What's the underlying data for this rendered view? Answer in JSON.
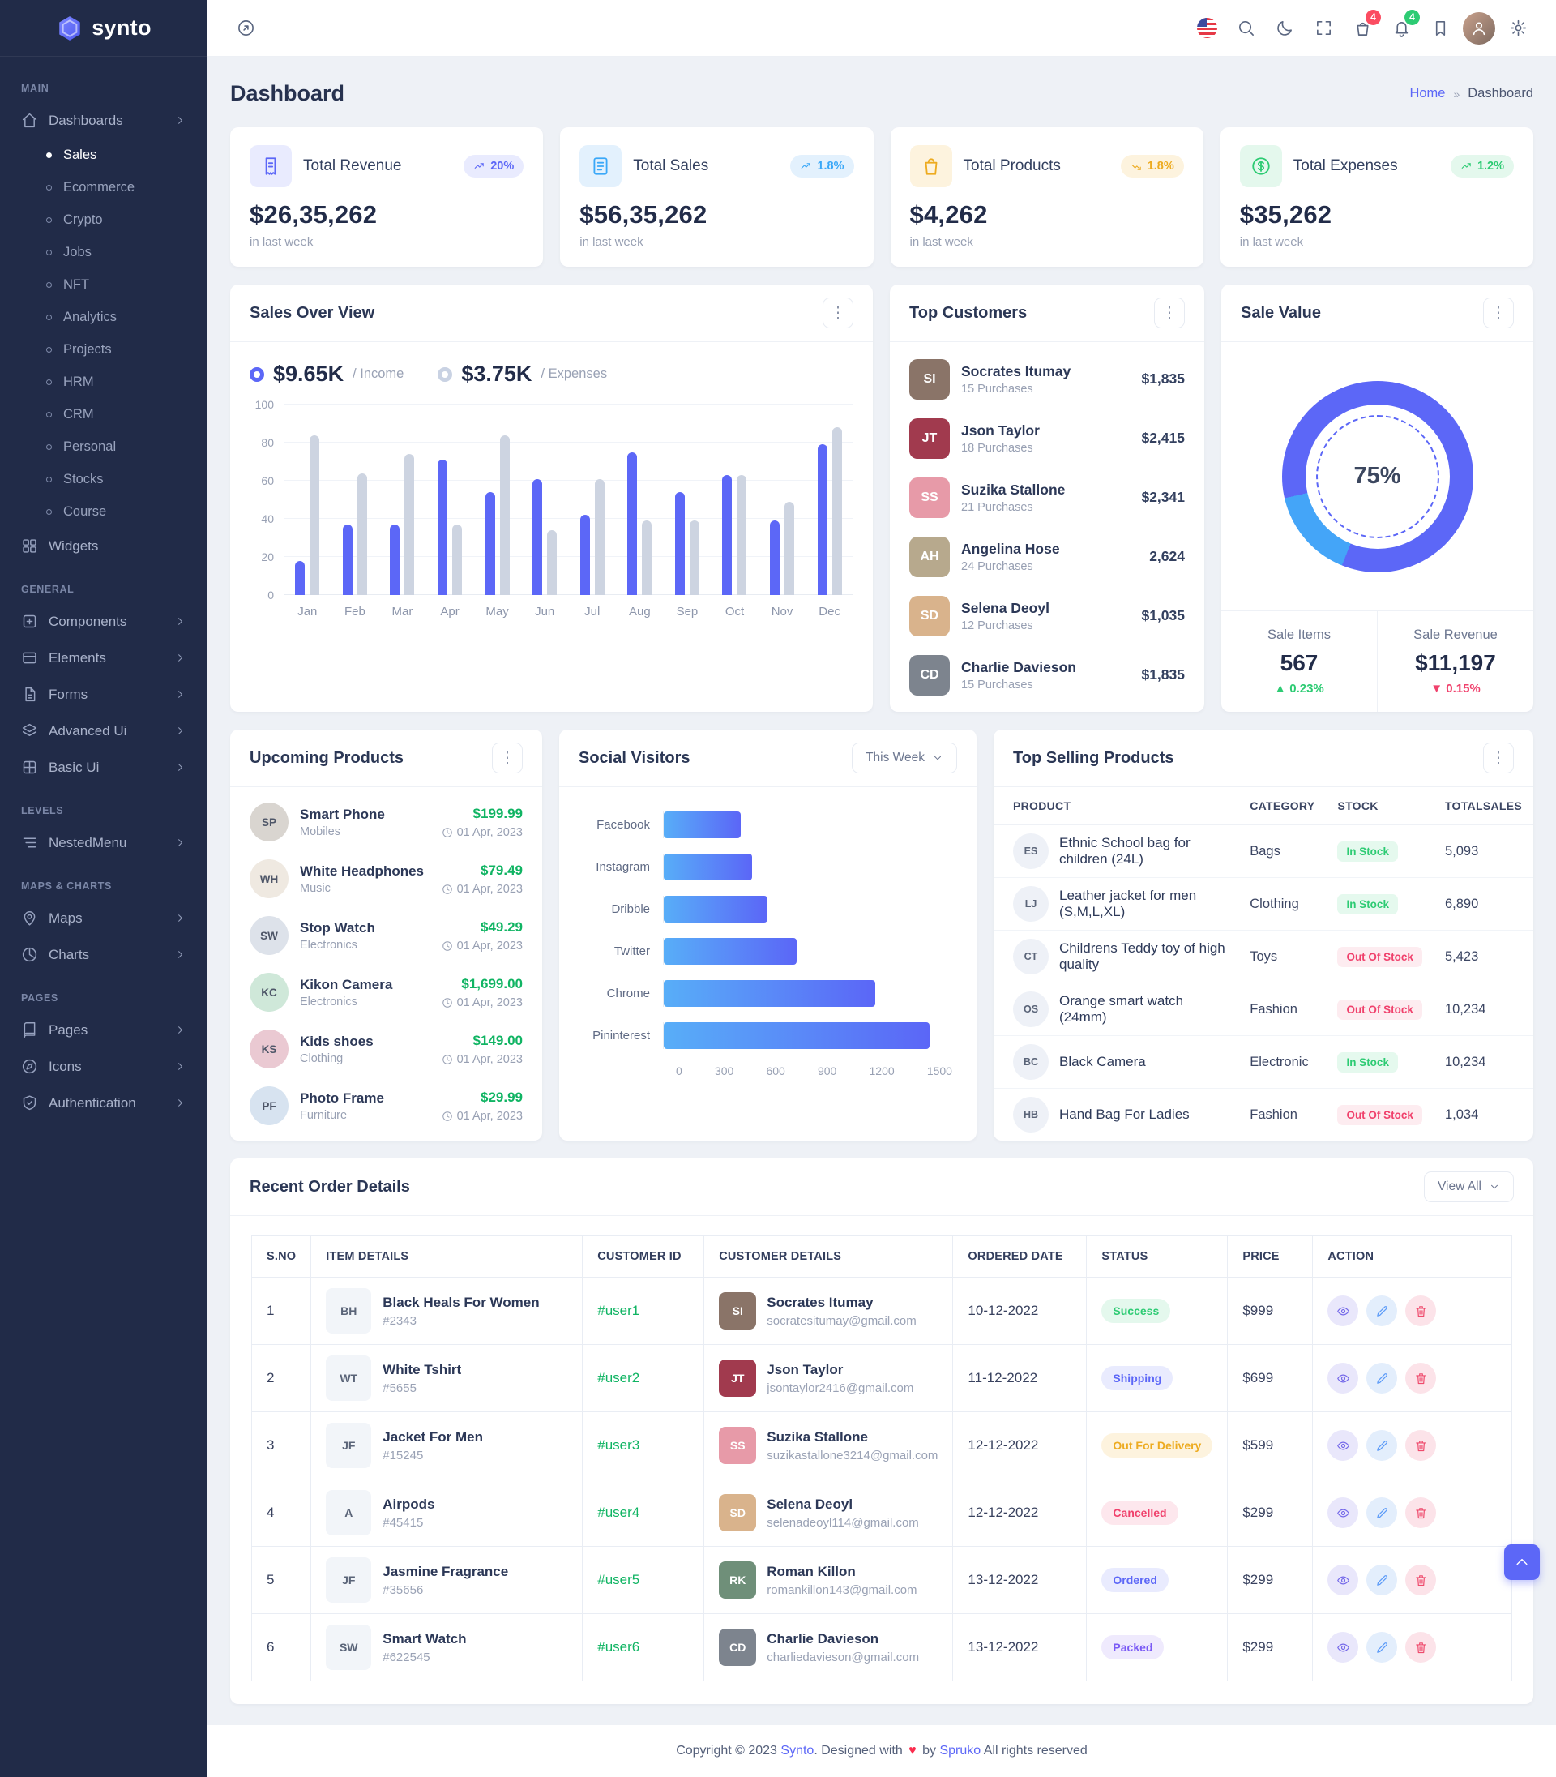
{
  "brand": {
    "name": "synto"
  },
  "topbar": {
    "cart_badge": "4",
    "bell_badge": "4",
    "icons": [
      "flag-us",
      "search",
      "moon",
      "fullscreen",
      "basket",
      "bell",
      "bookmark",
      "avatar",
      "gear"
    ]
  },
  "page": {
    "title": "Dashboard",
    "breadcrumb_home": "Home",
    "breadcrumb_sep": "»",
    "breadcrumb_current": "Dashboard"
  },
  "sidebar": {
    "sections": [
      {
        "label": "MAIN",
        "items": [
          {
            "label": "Dashboards",
            "icon": "home",
            "chevron": true,
            "children": [
              {
                "label": "Sales",
                "active": true
              },
              {
                "label": "Ecommerce"
              },
              {
                "label": "Crypto"
              },
              {
                "label": "Jobs"
              },
              {
                "label": "NFT"
              },
              {
                "label": "Analytics"
              },
              {
                "label": "Projects"
              },
              {
                "label": "HRM"
              },
              {
                "label": "CRM"
              },
              {
                "label": "Personal"
              },
              {
                "label": "Stocks"
              },
              {
                "label": "Course"
              }
            ]
          },
          {
            "label": "Widgets",
            "icon": "widgets"
          }
        ]
      },
      {
        "label": "GENERAL",
        "items": [
          {
            "label": "Components",
            "icon": "components",
            "chevron": true
          },
          {
            "label": "Elements",
            "icon": "elements",
            "chevron": true
          },
          {
            "label": "Forms",
            "icon": "forms",
            "chevron": true
          },
          {
            "label": "Advanced Ui",
            "icon": "advanced-ui",
            "chevron": true
          },
          {
            "label": "Basic Ui",
            "icon": "basic-ui",
            "chevron": true
          }
        ]
      },
      {
        "label": "LEVELS",
        "items": [
          {
            "label": "NestedMenu",
            "icon": "nested-menu",
            "chevron": true
          }
        ]
      },
      {
        "label": "MAPS & CHARTS",
        "items": [
          {
            "label": "Maps",
            "icon": "maps",
            "chevron": true
          },
          {
            "label": "Charts",
            "icon": "charts",
            "chevron": true
          }
        ]
      },
      {
        "label": "PAGES",
        "items": [
          {
            "label": "Pages",
            "icon": "pages",
            "chevron": true
          },
          {
            "label": "Icons",
            "icon": "icons",
            "chevron": true
          },
          {
            "label": "Authentication",
            "icon": "authentication",
            "chevron": true
          }
        ]
      }
    ]
  },
  "stats": [
    {
      "title": "Total Revenue",
      "value": "$26,35,262",
      "caption": "in last week",
      "badge": "20%",
      "trend": "up",
      "icon": "receipt",
      "accent": "#5c67f7",
      "tint": "#e9ebfe"
    },
    {
      "title": "Total Sales",
      "value": "$56,35,262",
      "caption": "in last week",
      "badge": "1.8%",
      "trend": "up",
      "icon": "file-lines",
      "accent": "#3aa8f8",
      "tint": "#e3f1fd"
    },
    {
      "title": "Total Products",
      "value": "$4,262",
      "caption": "in last week",
      "badge": "1.8%",
      "trend": "down",
      "icon": "shopping-bag",
      "accent": "#edab20",
      "tint": "#fdf3de"
    },
    {
      "title": "Total Expenses",
      "value": "$35,262",
      "caption": "in last week",
      "badge": "1.2%",
      "trend": "up",
      "icon": "dollar-circle",
      "accent": "#2dcb73",
      "tint": "#e4f8ed"
    }
  ],
  "sales_overview": {
    "title": "Sales Over View",
    "legend": [
      {
        "value": "$9.65K",
        "label": "/ Income",
        "color": "#5c67f7"
      },
      {
        "value": "$3.75K",
        "label": "/ Expenses",
        "color": "#c9d2e3"
      }
    ],
    "chart_data": {
      "type": "bar",
      "x": [
        "Jan",
        "Feb",
        "Mar",
        "Apr",
        "May",
        "Jun",
        "Jul",
        "Aug",
        "Sep",
        "Oct",
        "Nov",
        "Dec"
      ],
      "series": [
        {
          "name": "Income",
          "color": "#5c67f7",
          "values": [
            18,
            37,
            37,
            71,
            54,
            61,
            42,
            75,
            54,
            63,
            39,
            79
          ]
        },
        {
          "name": "Expenses",
          "color": "#cdd4e1",
          "values": [
            84,
            64,
            74,
            37,
            84,
            34,
            61,
            39,
            39,
            63,
            49,
            88
          ]
        }
      ],
      "ylim": [
        0,
        100
      ],
      "yticks": [
        0,
        20,
        40,
        60,
        80,
        100
      ],
      "grid": true,
      "legend_position": "top"
    }
  },
  "top_customers": {
    "title": "Top Customers",
    "items": [
      {
        "name": "Socrates Itumay",
        "purchases": "15 Purchases",
        "amount": "$1,835",
        "avatar_bg": "#8a7468"
      },
      {
        "name": "Json Taylor",
        "purchases": "18 Purchases",
        "amount": "$2,415",
        "avatar_bg": "#a13a4e"
      },
      {
        "name": "Suzika Stallone",
        "purchases": "21 Purchases",
        "amount": "$2,341",
        "avatar_bg": "#e79aa8"
      },
      {
        "name": "Angelina Hose",
        "purchases": "24 Purchases",
        "amount": "2,624",
        "avatar_bg": "#b7a98d"
      },
      {
        "name": "Selena Deoyl",
        "purchases": "12 Purchases",
        "amount": "$1,035",
        "avatar_bg": "#d9b38c"
      },
      {
        "name": "Charlie Davieson",
        "purchases": "15 Purchases",
        "amount": "$1,835",
        "avatar_bg": "#7d848e"
      }
    ]
  },
  "sale_value": {
    "title": "Sale Value",
    "chart_data": {
      "type": "donut",
      "percent_label": "75%",
      "segments": [
        {
          "name": "primary",
          "color": "#5c67f7",
          "from_deg": 0,
          "to_deg": 202
        },
        {
          "name": "secondary",
          "color": "#44a5f8",
          "from_deg": 202,
          "to_deg": 257
        },
        {
          "name": "primary",
          "color": "#5c67f7",
          "from_deg": 257,
          "to_deg": 360
        }
      ]
    },
    "metrics": [
      {
        "label": "Sale Items",
        "value": "567",
        "delta": "0.23%",
        "direction": "up"
      },
      {
        "label": "Sale Revenue",
        "value": "$11,197",
        "delta": "0.15%",
        "direction": "down"
      }
    ]
  },
  "upcoming_products": {
    "title": "Upcoming Products",
    "items": [
      {
        "name": "Smart Phone",
        "category": "Mobiles",
        "price": "$199.99",
        "date": "01 Apr, 2023",
        "thumb": "#d9d5d0"
      },
      {
        "name": "White Headphones",
        "category": "Music",
        "price": "$79.49",
        "date": "01 Apr, 2023",
        "thumb": "#efe9e1"
      },
      {
        "name": "Stop Watch",
        "category": "Electronics",
        "price": "$49.29",
        "date": "01 Apr, 2023",
        "thumb": "#dde2ea"
      },
      {
        "name": "Kikon Camera",
        "category": "Electronics",
        "price": "$1,699.00",
        "date": "01 Apr, 2023",
        "thumb": "#cfe8d9"
      },
      {
        "name": "Kids shoes",
        "category": "Clothing",
        "price": "$149.00",
        "date": "01 Apr, 2023",
        "thumb": "#eac9d2"
      },
      {
        "name": "Photo Frame",
        "category": "Furniture",
        "price": "$29.99",
        "date": "01 Apr, 2023",
        "thumb": "#d7e3f0"
      }
    ]
  },
  "social_visitors": {
    "title": "Social Visitors",
    "range_label": "This Week",
    "chart_data": {
      "type": "bar",
      "orientation": "horizontal",
      "categories": [
        "Facebook",
        "Instagram",
        "Dribble",
        "Twitter",
        "Chrome",
        "Pininterest"
      ],
      "values": [
        400,
        460,
        540,
        690,
        1100,
        1380
      ],
      "xlim": [
        0,
        1500
      ],
      "xticks": [
        0,
        300,
        600,
        900,
        1200,
        1500
      ],
      "bar_gradient": [
        "#58aef8",
        "#5b66f7"
      ]
    }
  },
  "top_selling": {
    "title": "Top Selling Products",
    "headers": [
      "PRODUCT",
      "CATEGORY",
      "STOCK",
      "TOTALSALES"
    ],
    "rows": [
      {
        "product": "Ethnic School bag for children (24L)",
        "category": "Bags",
        "stock": "In Stock",
        "stock_state": "in",
        "totalsales": "5,093"
      },
      {
        "product": "Leather jacket for men (S,M,L,XL)",
        "category": "Clothing",
        "stock": "In Stock",
        "stock_state": "in",
        "totalsales": "6,890"
      },
      {
        "product": "Childrens Teddy toy of high quality",
        "category": "Toys",
        "stock": "Out Of Stock",
        "stock_state": "out",
        "totalsales": "5,423"
      },
      {
        "product": "Orange smart watch (24mm)",
        "category": "Fashion",
        "stock": "Out Of Stock",
        "stock_state": "out",
        "totalsales": "10,234"
      },
      {
        "product": "Black Camera",
        "category": "Electronic",
        "stock": "In Stock",
        "stock_state": "in",
        "totalsales": "10,234"
      },
      {
        "product": "Hand Bag For Ladies",
        "category": "Fashion",
        "stock": "Out Of Stock",
        "stock_state": "out",
        "totalsales": "1,034"
      }
    ]
  },
  "recent_orders": {
    "title": "Recent Order Details",
    "view_all_label": "View All",
    "headers": [
      "S.NO",
      "ITEM DETAILS",
      "CUSTOMER ID",
      "CUSTOMER DETAILS",
      "ORDERED DATE",
      "STATUS",
      "PRICE",
      "ACTION"
    ],
    "rows": [
      {
        "sno": "1",
        "item": "Black Heals For Women",
        "item_id": "#2343",
        "customer_id": "#user1",
        "customer": "Socrates Itumay",
        "email": "socratesitumay@gmail.com",
        "date": "10-12-2022",
        "status": "Success",
        "status_color": "#2dcb73",
        "status_bg": "#e4f8ed",
        "price": "$999",
        "avatar_bg": "#8a7468"
      },
      {
        "sno": "2",
        "item": "White Tshirt",
        "item_id": "#5655",
        "customer_id": "#user2",
        "customer": "Json Taylor",
        "email": "jsontaylor2416@gmail.com",
        "date": "11-12-2022",
        "status": "Shipping",
        "status_color": "#5c67f7",
        "status_bg": "#e9ebfe",
        "price": "$699",
        "avatar_bg": "#a13a4e"
      },
      {
        "sno": "3",
        "item": "Jacket For Men",
        "item_id": "#15245",
        "customer_id": "#user3",
        "customer": "Suzika Stallone",
        "email": "suzikastallone3214@gmail.com",
        "date": "12-12-2022",
        "status": "Out For Delivery",
        "status_color": "#edab20",
        "status_bg": "#fdf3de",
        "price": "$599",
        "avatar_bg": "#e79aa8"
      },
      {
        "sno": "4",
        "item": "Airpods",
        "item_id": "#45415",
        "customer_id": "#user4",
        "customer": "Selena Deoyl",
        "email": "selenadeoyl114@gmail.com",
        "date": "12-12-2022",
        "status": "Cancelled",
        "status_color": "#f0416c",
        "status_bg": "#fde7ed",
        "price": "$299",
        "avatar_bg": "#d9b38c"
      },
      {
        "sno": "5",
        "item": "Jasmine Fragrance",
        "item_id": "#35656",
        "customer_id": "#user5",
        "customer": "Roman Killon",
        "email": "romankillon143@gmail.com",
        "date": "13-12-2022",
        "status": "Ordered",
        "status_color": "#5c67f7",
        "status_bg": "#e9ebfe",
        "price": "$299",
        "avatar_bg": "#6f8f79"
      },
      {
        "sno": "6",
        "item": "Smart Watch",
        "item_id": "#622545",
        "customer_id": "#user6",
        "customer": "Charlie Davieson",
        "email": "charliedavieson@gmail.com",
        "date": "13-12-2022",
        "status": "Packed",
        "status_color": "#7b5bf5",
        "status_bg": "#efeafd",
        "price": "$299",
        "avatar_bg": "#7d848e"
      }
    ]
  },
  "footer": {
    "prefix": "Copyright © 2023",
    "brand": "Synto",
    "middle": ". Designed with",
    "heart": "♥",
    "by": "by",
    "designer": "Spruko",
    "suffix": "All rights reserved"
  }
}
